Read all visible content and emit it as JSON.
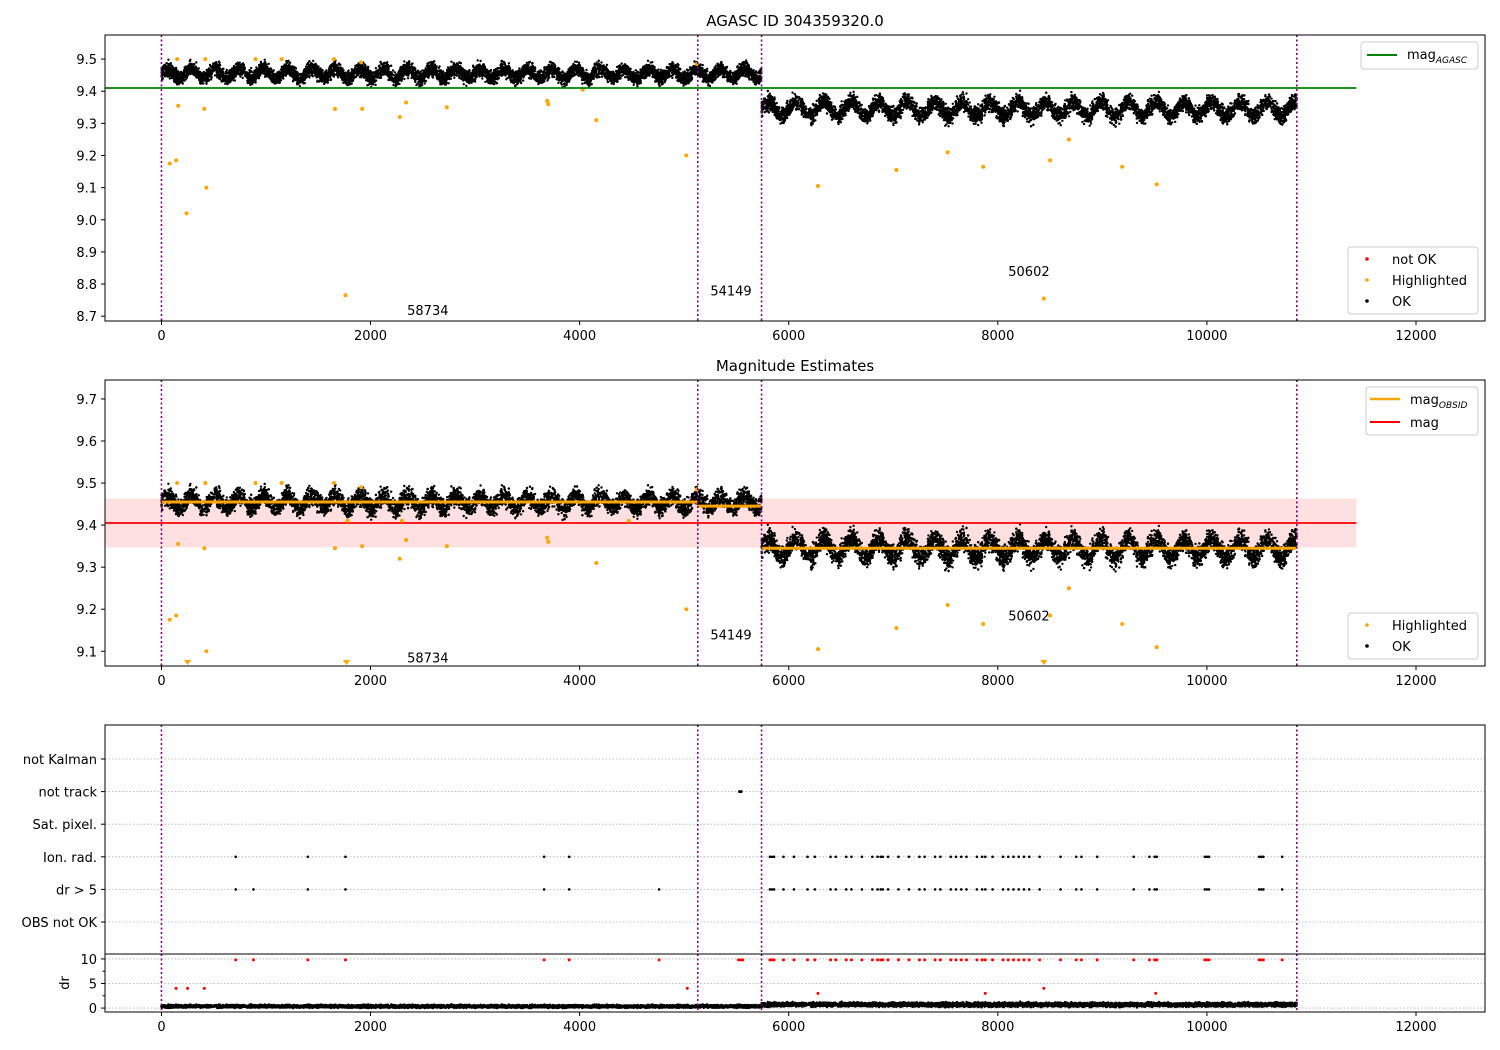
{
  "chart_data": [
    {
      "type": "scatter",
      "title": "AGASC ID 304359320.0",
      "xlim": [
        -540,
        12660
      ],
      "ylim": [
        8.685,
        9.575
      ],
      "xticks": [
        0,
        2000,
        4000,
        6000,
        8000,
        10000,
        12000
      ],
      "yticks": [
        8.7,
        8.8,
        8.9,
        9.0,
        9.1,
        9.2,
        9.3,
        9.4,
        9.5
      ],
      "vlines": [
        0,
        5130,
        5740,
        10860
      ],
      "hline": {
        "name": "mag_AGASC",
        "y": 9.41,
        "x_range": [
          -540,
          11430
        ],
        "color": "#008000"
      },
      "annotations": [
        {
          "text": "58734",
          "x": 2350,
          "y": 8.72
        },
        {
          "text": "54149",
          "x": 5250,
          "y": 8.78
        },
        {
          "text": "50602",
          "x": 8100,
          "y": 8.84
        }
      ],
      "ok_segments": [
        {
          "x": [
            0,
            5740
          ],
          "center": 9.455,
          "amp": 0.015,
          "spread": 0.022,
          "period": 230
        },
        {
          "x": [
            5740,
            10860
          ],
          "center": 9.345,
          "amp": 0.022,
          "spread": 0.026,
          "period": 265
        }
      ],
      "highlighted": {
        "x": [
          80,
          140,
          160,
          240,
          410,
          430,
          1760,
          1660,
          1920,
          2280,
          2340,
          2730,
          3690,
          3700,
          4160,
          5020,
          6280,
          7030,
          7520,
          7860,
          8440,
          8500,
          8680,
          9190,
          9520,
          150,
          420,
          900,
          1150,
          1650,
          1910,
          4030,
          5120
        ],
        "y": [
          9.175,
          9.185,
          9.355,
          9.02,
          9.345,
          9.1,
          8.765,
          9.345,
          9.345,
          9.32,
          9.365,
          9.35,
          9.37,
          9.36,
          9.31,
          9.2,
          9.105,
          9.155,
          9.21,
          9.165,
          8.755,
          9.185,
          9.25,
          9.165,
          9.11,
          9.5,
          9.5,
          9.5,
          9.5,
          9.5,
          9.49,
          9.405,
          9.485
        ]
      },
      "legend": {
        "placement": "lower right",
        "entries": [
          {
            "label": "not OK",
            "color": "#ff0000"
          },
          {
            "label": "Highlighted",
            "color": "#ffa500"
          },
          {
            "label": "OK",
            "color": "#000000"
          }
        ]
      },
      "line_legend": {
        "placement": "upper right",
        "label_main": "mag",
        "label_sub": "AGASC",
        "color": "#008000"
      }
    },
    {
      "type": "scatter",
      "title": "Magnitude Estimates",
      "xlim": [
        -540,
        12660
      ],
      "ylim": [
        9.065,
        9.745
      ],
      "xticks": [
        0,
        2000,
        4000,
        6000,
        8000,
        10000,
        12000
      ],
      "yticks": [
        9.1,
        9.2,
        9.3,
        9.4,
        9.5,
        9.6,
        9.7
      ],
      "vlines": [
        0,
        5130,
        5740,
        10860
      ],
      "mag_line": {
        "y": 9.405,
        "band": [
          9.347,
          9.463
        ],
        "x_range": [
          -540,
          11430
        ],
        "color": "#ff0000",
        "band_color": "#ffe0e0"
      },
      "obsid_lines": [
        {
          "x": [
            0,
            5130
          ],
          "y": 9.455
        },
        {
          "x": [
            5130,
            5740
          ],
          "y": 9.445
        },
        {
          "x": [
            5740,
            10860
          ],
          "y": 9.345
        }
      ],
      "annotations": [
        {
          "text": "58734",
          "x": 2350,
          "y": 9.085
        },
        {
          "text": "54149",
          "x": 5250,
          "y": 9.14
        },
        {
          "text": "50602",
          "x": 8100,
          "y": 9.185
        }
      ],
      "ok_segments": [
        {
          "x": [
            0,
            5740
          ],
          "center": 9.455,
          "amp": 0.015,
          "spread": 0.022,
          "period": 230
        },
        {
          "x": [
            5740,
            10860
          ],
          "center": 9.345,
          "amp": 0.022,
          "spread": 0.026,
          "period": 265
        }
      ],
      "highlighted": {
        "x": [
          80,
          140,
          160,
          410,
          430,
          1660,
          1920,
          2280,
          2340,
          2730,
          3690,
          3700,
          4160,
          5020,
          6280,
          7030,
          7520,
          7860,
          8500,
          8680,
          9190,
          9520,
          150,
          420,
          900,
          1150,
          1650,
          1910,
          5120,
          1780,
          2300,
          4470
        ],
        "y": [
          9.175,
          9.185,
          9.355,
          9.345,
          9.1,
          9.345,
          9.35,
          9.32,
          9.365,
          9.35,
          9.37,
          9.36,
          9.31,
          9.2,
          9.105,
          9.155,
          9.21,
          9.165,
          9.185,
          9.25,
          9.165,
          9.11,
          9.5,
          9.5,
          9.5,
          9.5,
          9.5,
          9.49,
          9.485,
          9.41,
          9.41,
          9.41
        ]
      },
      "clipped_low_x": [
        250,
        1770,
        8440
      ],
      "legend": {
        "placement": "lower right",
        "entries": [
          {
            "label": "Highlighted",
            "color": "#ffa500"
          },
          {
            "label": "OK",
            "color": "#000000"
          }
        ]
      },
      "line_legend": {
        "placement": "upper right",
        "entries": [
          {
            "label_main": "mag",
            "label_sub": "OBSID",
            "color": "#ffa500"
          },
          {
            "label_main": "mag",
            "label_sub": "",
            "color": "#ff0000"
          }
        ]
      }
    },
    {
      "type": "scatter",
      "title": "",
      "xlim": [
        -540,
        12660
      ],
      "xticks": [
        0,
        2000,
        4000,
        6000,
        8000,
        10000,
        12000
      ],
      "vlines": [
        0,
        5130,
        5740,
        10860
      ],
      "categories": [
        "not Kalman",
        "not track",
        "Sat. pixel.",
        "Ion. rad.",
        "dr > 5",
        "OBS not OK"
      ],
      "not_track_x": [
        5530,
        5545
      ],
      "ion_rad_x": [
        710,
        1400,
        1760,
        3660,
        3900,
        5820,
        5840,
        5860,
        5950,
        6050,
        6180,
        6250,
        6400,
        6450,
        6550,
        6600,
        6700,
        6800,
        6850,
        6880,
        6900,
        6950,
        7050,
        7150,
        7250,
        7300,
        7400,
        7450,
        7550,
        7600,
        7650,
        7700,
        7800,
        7850,
        7880,
        7950,
        8050,
        8100,
        8150,
        8200,
        8250,
        8300,
        8400,
        8600,
        8750,
        8800,
        8950,
        9300,
        9450,
        9500,
        9520,
        9980,
        10000,
        10020,
        10500,
        10520,
        10540,
        10720
      ],
      "dr5_x": [
        710,
        880,
        1400,
        1760,
        3660,
        3900,
        4760,
        5820,
        5840,
        5860,
        5950,
        6050,
        6180,
        6250,
        6400,
        6450,
        6550,
        6600,
        6700,
        6800,
        6850,
        6880,
        6900,
        6950,
        7050,
        7150,
        7250,
        7300,
        7400,
        7450,
        7550,
        7600,
        7650,
        7700,
        7800,
        7850,
        7880,
        7950,
        8050,
        8100,
        8150,
        8200,
        8250,
        8300,
        8400,
        8600,
        8750,
        8800,
        8950,
        9300,
        9450,
        9500,
        9520,
        9980,
        10000,
        10020,
        10500,
        10520,
        10540,
        10720
      ]
    },
    {
      "type": "scatter",
      "title": "",
      "ylabel": "dr",
      "xlim": [
        -540,
        12660
      ],
      "ylim": [
        -0.8,
        11
      ],
      "xticks": [
        0,
        2000,
        4000,
        6000,
        8000,
        10000,
        12000
      ],
      "yticks": [
        0,
        5,
        10
      ],
      "minor_yticks": [
        2.5,
        7.5
      ],
      "vlines": [
        0,
        5130,
        5740,
        10860
      ],
      "ok_segments": [
        {
          "x": [
            0,
            5740
          ],
          "center": 0.35,
          "spread": 0.25
        },
        {
          "x": [
            5740,
            10860
          ],
          "center": 0.7,
          "spread": 0.35
        }
      ],
      "not_ok": {
        "x": [
          140,
          250,
          410,
          5030,
          6280,
          7880,
          8440,
          9510,
          710,
          880,
          1400,
          1760,
          3660,
          3900,
          4760,
          5520,
          5540,
          5560,
          5820,
          5840,
          5860,
          5950,
          6050,
          6180,
          6250,
          6400,
          6450,
          6550,
          6600,
          6700,
          6800,
          6850,
          6880,
          6900,
          6950,
          7050,
          7150,
          7250,
          7300,
          7400,
          7450,
          7550,
          7600,
          7650,
          7700,
          7800,
          7850,
          7880,
          7950,
          8050,
          8100,
          8150,
          8200,
          8250,
          8300,
          8400,
          8600,
          8750,
          8800,
          8950,
          9300,
          9450,
          9500,
          9520,
          9980,
          10000,
          10020,
          10500,
          10520,
          10540,
          10720
        ],
        "y": [
          4,
          4,
          4,
          4,
          3,
          3,
          4,
          3,
          9.8,
          9.8,
          9.8,
          9.8,
          9.8,
          9.8,
          9.8,
          9.8,
          9.8,
          9.8,
          9.8,
          9.8,
          9.8,
          9.8,
          9.8,
          9.8,
          9.8,
          9.8,
          9.8,
          9.8,
          9.8,
          9.8,
          9.8,
          9.8,
          9.8,
          9.8,
          9.8,
          9.8,
          9.8,
          9.8,
          9.8,
          9.8,
          9.8,
          9.8,
          9.8,
          9.8,
          9.8,
          9.8,
          9.8,
          9.8,
          9.8,
          9.8,
          9.8,
          9.8,
          9.8,
          9.8,
          9.8,
          9.8,
          9.8,
          9.8,
          9.8,
          9.8,
          9.8,
          9.8,
          9.8,
          9.8,
          9.8,
          9.8,
          9.8,
          9.8,
          9.8,
          9.8,
          9.8
        ]
      }
    }
  ],
  "colors": {
    "ok": "#000000",
    "highlighted": "#ffa500",
    "not_ok": "#ff0000",
    "vline": "#800080",
    "agasc_line": "#008000",
    "mag_line": "#ff0000",
    "obsid_line": "#ffa500",
    "band": "#ffe0e0",
    "grid": "#b0b0b0"
  }
}
